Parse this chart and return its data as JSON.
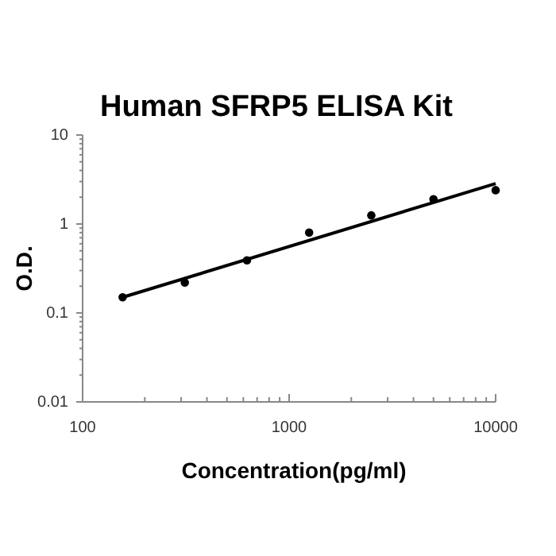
{
  "chart_data": {
    "type": "scatter",
    "title": "Human SFRP5 ELISA Kit",
    "xlabel": "Concentration(pg/ml)",
    "ylabel": "O.D.",
    "log": "xy",
    "line_style": "solid",
    "xlim": [
      100,
      10000
    ],
    "ylim": [
      0.01,
      10
    ],
    "xticks": [
      100,
      {
        "value": 200,
        "label": null
      },
      {
        "value": 300,
        "label": null
      },
      {
        "value": 400,
        "label": null
      },
      {
        "value": 500,
        "label": null
      },
      {
        "value": 600,
        "label": null
      },
      {
        "value": 700,
        "label": null
      },
      {
        "value": 800,
        "label": null
      },
      {
        "value": 900,
        "label": null
      },
      1000,
      {
        "value": 2000,
        "label": null
      },
      {
        "value": 3000,
        "label": null
      },
      {
        "value": 4000,
        "label": null
      },
      {
        "value": 5000,
        "label": null
      },
      {
        "value": 6000,
        "label": null
      },
      {
        "value": 7000,
        "label": null
      },
      {
        "value": 8000,
        "label": null
      },
      {
        "value": 9000,
        "label": null
      },
      10000
    ],
    "yticks": [
      0.01,
      {
        "value": 0.02,
        "label": null
      },
      {
        "value": 0.03,
        "label": null
      },
      {
        "value": 0.04,
        "label": null
      },
      {
        "value": 0.05,
        "label": null
      },
      {
        "value": 0.06,
        "label": null
      },
      {
        "value": 0.07,
        "label": null
      },
      {
        "value": 0.08,
        "label": null
      },
      {
        "value": 0.09,
        "label": null
      },
      0.1,
      {
        "value": 0.2,
        "label": null
      },
      {
        "value": 0.3,
        "label": null
      },
      {
        "value": 0.4,
        "label": null
      },
      {
        "value": 0.5,
        "label": null
      },
      {
        "value": 0.6,
        "label": null
      },
      {
        "value": 0.7,
        "label": null
      },
      {
        "value": 0.8,
        "label": null
      },
      {
        "value": 0.9,
        "label": null
      },
      1,
      {
        "value": 2,
        "label": null
      },
      {
        "value": 3,
        "label": null
      },
      {
        "value": 4,
        "label": null
      },
      {
        "value": 5,
        "label": null
      },
      {
        "value": 6,
        "label": null
      },
      {
        "value": 7,
        "label": null
      },
      {
        "value": 8,
        "label": null
      },
      {
        "value": 9,
        "label": null
      },
      10
    ],
    "series": [
      {
        "marker": "circle",
        "color": "#000000",
        "x": [
          156.25,
          312.5,
          625,
          1250,
          2500,
          5000,
          10000
        ],
        "values": [
          0.15,
          0.22,
          0.39,
          0.8,
          1.25,
          1.9,
          2.4
        ]
      },
      {
        "type": "line",
        "marker": "none",
        "color": "#000000",
        "x": [
          156.25,
          10000
        ],
        "values": [
          0.15,
          2.85
        ]
      }
    ]
  }
}
